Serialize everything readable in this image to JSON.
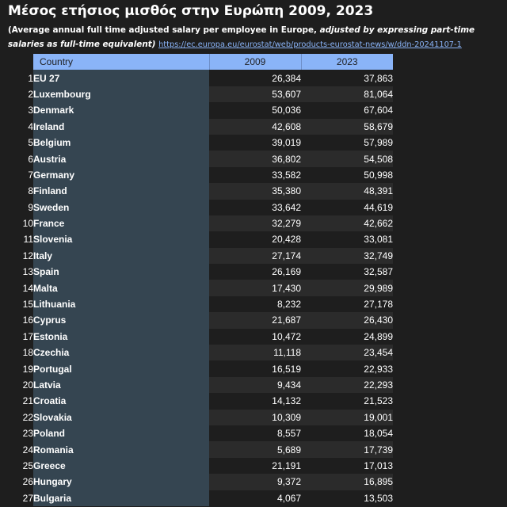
{
  "title": "Μέσος ετήσιος μισθός στην Ευρώπη 2009, 2023",
  "subtitle": {
    "plain": "(Average annual full time adjusted salary per employee in Europe, ",
    "emphasis": "adjusted by expressing part-time salaries as full-time equivalent)",
    "link": "https://ec.europa.eu/eurostat/web/products-eurostat-news/w/ddn-20241107-1"
  },
  "table": {
    "headers": {
      "country": "Country",
      "y2009": "2009",
      "y2023": "2023"
    },
    "rows": [
      {
        "idx": "1",
        "country": "EU 27",
        "y2009": "26,384",
        "y2023": "37,863"
      },
      {
        "idx": "2",
        "country": "Luxembourg",
        "y2009": "53,607",
        "y2023": "81,064"
      },
      {
        "idx": "3",
        "country": "Denmark",
        "y2009": "50,036",
        "y2023": "67,604"
      },
      {
        "idx": "4",
        "country": "Ireland",
        "y2009": "42,608",
        "y2023": "58,679"
      },
      {
        "idx": "5",
        "country": "Belgium",
        "y2009": "39,019",
        "y2023": "57,989"
      },
      {
        "idx": "6",
        "country": "Austria",
        "y2009": "36,802",
        "y2023": "54,508"
      },
      {
        "idx": "7",
        "country": "Germany",
        "y2009": "33,582",
        "y2023": "50,998"
      },
      {
        "idx": "8",
        "country": "Finland",
        "y2009": "35,380",
        "y2023": "48,391"
      },
      {
        "idx": "9",
        "country": "Sweden",
        "y2009": "33,642",
        "y2023": "44,619"
      },
      {
        "idx": "10",
        "country": "France",
        "y2009": "32,279",
        "y2023": "42,662"
      },
      {
        "idx": "11",
        "country": "Slovenia",
        "y2009": "20,428",
        "y2023": "33,081"
      },
      {
        "idx": "12",
        "country": "Italy",
        "y2009": "27,174",
        "y2023": "32,749"
      },
      {
        "idx": "13",
        "country": "Spain",
        "y2009": "26,169",
        "y2023": "32,587"
      },
      {
        "idx": "14",
        "country": "Malta",
        "y2009": "17,430",
        "y2023": "29,989"
      },
      {
        "idx": "15",
        "country": "Lithuania",
        "y2009": "8,232",
        "y2023": "27,178"
      },
      {
        "idx": "16",
        "country": "Cyprus",
        "y2009": "21,687",
        "y2023": "26,430"
      },
      {
        "idx": "17",
        "country": "Estonia",
        "y2009": "10,472",
        "y2023": "24,899"
      },
      {
        "idx": "18",
        "country": "Czechia",
        "y2009": "11,118",
        "y2023": "23,454"
      },
      {
        "idx": "19",
        "country": "Portugal",
        "y2009": "16,519",
        "y2023": "22,933"
      },
      {
        "idx": "20",
        "country": "Latvia",
        "y2009": "9,434",
        "y2023": "22,293"
      },
      {
        "idx": "21",
        "country": "Croatia",
        "y2009": "14,132",
        "y2023": "21,523"
      },
      {
        "idx": "22",
        "country": "Slovakia",
        "y2009": "10,309",
        "y2023": "19,001"
      },
      {
        "idx": "23",
        "country": "Poland",
        "y2009": "8,557",
        "y2023": "18,054"
      },
      {
        "idx": "24",
        "country": "Romania",
        "y2009": "5,689",
        "y2023": "17,739"
      },
      {
        "idx": "25",
        "country": "Greece",
        "y2009": "21,191",
        "y2023": "17,013"
      },
      {
        "idx": "26",
        "country": "Hungary",
        "y2009": "9,372",
        "y2023": "16,895"
      },
      {
        "idx": "27",
        "country": "Bulgaria",
        "y2009": "4,067",
        "y2023": "13,503"
      }
    ]
  },
  "colors": {
    "background": "#1e1e1e",
    "header": "#8ab4f8",
    "country_cell": "#354551",
    "alt_row": "#2b2b2b",
    "link": "#8ab4f8"
  }
}
